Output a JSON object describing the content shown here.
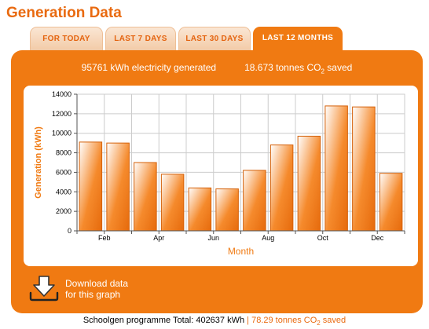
{
  "page": {
    "title": "Generation Data"
  },
  "tabs": [
    {
      "label": "FOR TODAY",
      "active": false
    },
    {
      "label": "LAST 7 DAYS",
      "active": false
    },
    {
      "label": "LAST 30 DAYS",
      "active": false
    },
    {
      "label": "LAST 12 MONTHS",
      "active": true
    }
  ],
  "summary": {
    "electricity": "95761 kWh electricity generated",
    "co2_prefix": "18.673 tonnes CO",
    "co2_sub": "2",
    "co2_suffix": " saved"
  },
  "download": {
    "line1": "Download data",
    "line2": "for this graph",
    "icon": "download-arrow-icon"
  },
  "footer": {
    "total": "Schoolgen programme Total: 402637 kWh",
    "separator": " | ",
    "saved_prefix": "78.29 tonnes CO",
    "saved_sub": "2",
    "saved_suffix": " saved"
  },
  "colors": {
    "accent": "#f07a12",
    "accent_dark": "#d4610a",
    "bar_light": "#ffffff",
    "grid": "#cccccc"
  },
  "chart_data": {
    "type": "bar",
    "xlabel": "Month",
    "ylabel": "Generation (kWh)",
    "ylim": [
      0,
      14000
    ],
    "yticks": [
      0,
      2000,
      4000,
      6000,
      8000,
      10000,
      12000,
      14000
    ],
    "x_tick_labels": [
      "",
      "Feb",
      "",
      "Apr",
      "",
      "Jun",
      "",
      "Aug",
      "",
      "Oct",
      "",
      "Dec",
      ""
    ],
    "grid": true,
    "series": [
      {
        "values": [
          9100,
          9000,
          7000,
          5800,
          4400,
          4300,
          6200,
          8800,
          9700,
          12800,
          12700,
          5900
        ]
      }
    ]
  }
}
